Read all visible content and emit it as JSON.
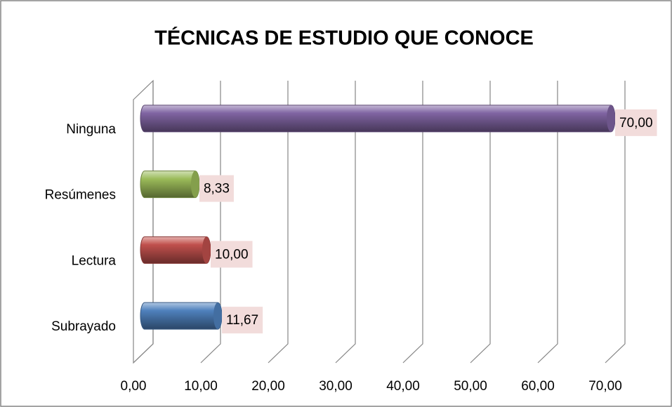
{
  "chart_data": {
    "type": "bar",
    "orientation": "horizontal",
    "title": "TÉCNICAS DE ESTUDIO QUE CONOCE",
    "categories": [
      "Ninguna",
      "Resúmenes",
      "Lectura",
      "Subrayado"
    ],
    "values": [
      70.0,
      8.33,
      10.0,
      11.67
    ],
    "value_labels": [
      "70,00",
      "8,33",
      "10,00",
      "11,67"
    ],
    "colors": [
      "#8064a2",
      "#9bbb59",
      "#c0504d",
      "#4f81bd"
    ],
    "xlim": [
      0,
      70
    ],
    "xticks": [
      {
        "value": 0,
        "label": "0,00"
      },
      {
        "value": 10,
        "label": "10,00"
      },
      {
        "value": 20,
        "label": "20,00"
      },
      {
        "value": 30,
        "label": "30,00"
      },
      {
        "value": 40,
        "label": "40,00"
      },
      {
        "value": 50,
        "label": "50,00"
      },
      {
        "value": 60,
        "label": "60,00"
      },
      {
        "value": 70,
        "label": "70,00"
      }
    ],
    "grid": true
  }
}
